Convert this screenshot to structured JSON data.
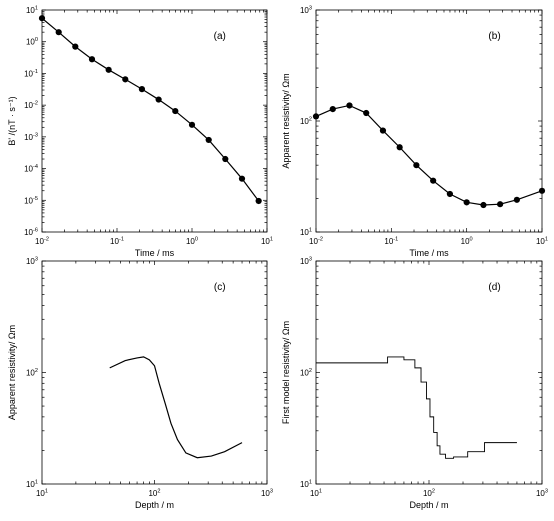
{
  "chart_data": [
    {
      "panel_label": "(a)",
      "type": "line",
      "markers": true,
      "x_scale": "log",
      "y_scale": "log",
      "xlim": [
        0.01,
        10
      ],
      "ylim": [
        1e-06,
        10
      ],
      "xlabel": "Time / ms",
      "ylabel": "B' /(nT · s⁻¹)",
      "x_ticks": [
        {
          "base": "10",
          "exp": "-2"
        },
        {
          "base": "10",
          "exp": "-1"
        },
        {
          "base": "10",
          "exp": "0"
        },
        {
          "base": "10",
          "exp": "1"
        }
      ],
      "y_ticks": [
        {
          "base": "10",
          "exp": "-6"
        },
        {
          "base": "10",
          "exp": "-5"
        },
        {
          "base": "10",
          "exp": "-4"
        },
        {
          "base": "10",
          "exp": "-3"
        },
        {
          "base": "10",
          "exp": "-2"
        },
        {
          "base": "10",
          "exp": "-1"
        },
        {
          "base": "10",
          "exp": "0"
        },
        {
          "base": "10",
          "exp": "1"
        }
      ],
      "x": [
        0.01,
        0.0167,
        0.0278,
        0.0464,
        0.0774,
        0.129,
        0.215,
        0.359,
        0.599,
        1.0,
        1.67,
        2.78,
        4.64,
        7.74
      ],
      "y": [
        5.5,
        2.0,
        0.7,
        0.28,
        0.13,
        0.065,
        0.032,
        0.015,
        0.0065,
        0.0024,
        0.0008,
        0.0002,
        4.8e-05,
        9.5e-06
      ]
    },
    {
      "panel_label": "(b)",
      "type": "line",
      "markers": true,
      "x_scale": "log",
      "y_scale": "log",
      "xlim": [
        0.01,
        10
      ],
      "ylim": [
        10,
        1000
      ],
      "xlabel": "Time / ms",
      "ylabel": "Apparent  resistivity/ Ωm",
      "x_ticks": [
        {
          "base": "10",
          "exp": "-2"
        },
        {
          "base": "10",
          "exp": "-1"
        },
        {
          "base": "10",
          "exp": "0"
        },
        {
          "base": "10",
          "exp": "1"
        }
      ],
      "y_ticks": [
        {
          "base": "10",
          "exp": "1"
        },
        {
          "base": "10",
          "exp": "2"
        },
        {
          "base": "10",
          "exp": "3"
        }
      ],
      "x": [
        0.01,
        0.0167,
        0.0278,
        0.0464,
        0.0774,
        0.129,
        0.215,
        0.359,
        0.599,
        1.0,
        1.67,
        2.78,
        4.64,
        10
      ],
      "y": [
        110,
        128,
        138,
        118,
        82,
        58,
        40,
        29,
        22,
        18.5,
        17.5,
        17.8,
        19.5,
        23.5
      ]
    },
    {
      "panel_label": "(c)",
      "type": "line",
      "markers": false,
      "x_scale": "log",
      "y_scale": "log",
      "xlim": [
        10,
        1000
      ],
      "ylim": [
        10,
        1000
      ],
      "xlabel": "Depth / m",
      "ylabel": "Apparent  resistivity/ Ωm",
      "x_ticks": [
        {
          "base": "10",
          "exp": "1"
        },
        {
          "base": "10",
          "exp": "2"
        },
        {
          "base": "10",
          "exp": "3"
        }
      ],
      "y_ticks": [
        {
          "base": "10",
          "exp": "1"
        },
        {
          "base": "10",
          "exp": "2"
        },
        {
          "base": "10",
          "exp": "3"
        }
      ],
      "x": [
        40,
        55,
        70,
        80,
        90,
        100,
        110,
        125,
        140,
        160,
        190,
        240,
        320,
        420,
        600
      ],
      "y": [
        110,
        128,
        135,
        138,
        130,
        115,
        80,
        52,
        35,
        25,
        19,
        17.2,
        17.8,
        19.5,
        23.5
      ]
    },
    {
      "panel_label": "(d)",
      "type": "line",
      "step": true,
      "markers": false,
      "x_scale": "log",
      "y_scale": "log",
      "xlim": [
        10,
        1000
      ],
      "ylim": [
        10,
        1000
      ],
      "xlabel": "Depth / m",
      "ylabel": "First model  resistivity/ Ωm",
      "x_ticks": [
        {
          "base": "10",
          "exp": "1"
        },
        {
          "base": "10",
          "exp": "2"
        },
        {
          "base": "10",
          "exp": "3"
        }
      ],
      "y_ticks": [
        {
          "base": "10",
          "exp": "1"
        },
        {
          "base": "10",
          "exp": "2"
        },
        {
          "base": "10",
          "exp": "3"
        }
      ],
      "x": [
        10,
        43,
        43,
        60,
        60,
        75,
        75,
        85,
        85,
        95,
        95,
        102,
        102,
        110,
        110,
        118,
        118,
        125,
        125,
        140,
        140,
        165,
        165,
        220,
        220,
        310,
        310,
        600
      ],
      "y": [
        122,
        122,
        138,
        138,
        130,
        130,
        110,
        110,
        82,
        82,
        58,
        58,
        40,
        40,
        29,
        29,
        22,
        22,
        18.5,
        18.5,
        17,
        17,
        17.5,
        17.5,
        19.5,
        19.5,
        23.5,
        23.5
      ]
    }
  ]
}
